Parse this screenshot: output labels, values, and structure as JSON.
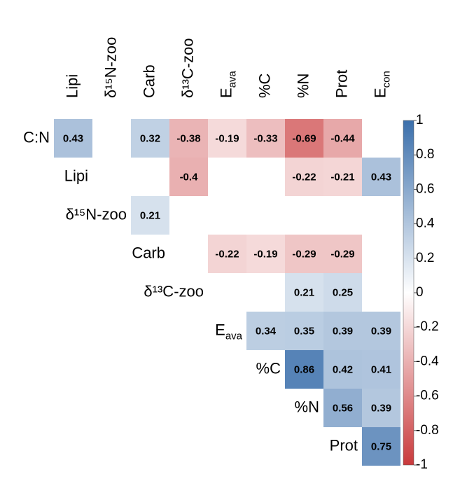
{
  "chart_data": {
    "type": "heatmap",
    "columns": [
      "Lipi",
      "δ¹⁵N-zoo",
      "Carb",
      "δ¹³C-zoo",
      {
        "text": "E",
        "sub": "ava"
      },
      "%C",
      "%N",
      "Prot",
      {
        "text": "E",
        "sub": "con"
      }
    ],
    "rows": [
      "C:N",
      "Lipi",
      "δ¹⁵N-zoo",
      "Carb",
      "δ¹³C-zoo",
      {
        "text": "E",
        "sub": "ava"
      },
      "%C",
      "%N",
      "Prot"
    ],
    "values": [
      [
        0.43,
        null,
        0.32,
        -0.38,
        -0.19,
        -0.33,
        -0.69,
        -0.44,
        null
      ],
      [
        null,
        null,
        -0.4,
        null,
        null,
        -0.22,
        -0.21,
        0.43
      ],
      [
        0.21,
        null,
        null,
        null,
        null,
        null,
        null
      ],
      [
        null,
        -0.22,
        -0.19,
        -0.29,
        -0.29,
        null
      ],
      [
        null,
        null,
        0.21,
        0.25,
        null
      ],
      [
        0.34,
        0.35,
        0.39,
        0.39
      ],
      [
        0.86,
        0.42,
        0.41
      ],
      [
        0.56,
        0.39
      ],
      [
        0.75
      ]
    ],
    "colormap": [
      "#c93a3c",
      "#ffffff",
      "#3b6fab"
    ],
    "clim": [
      -1,
      1
    ],
    "cticks": [
      -1,
      -0.8,
      -0.6,
      -0.4,
      -0.2,
      0,
      0.2,
      0.4,
      0.6,
      0.8,
      1
    ]
  }
}
